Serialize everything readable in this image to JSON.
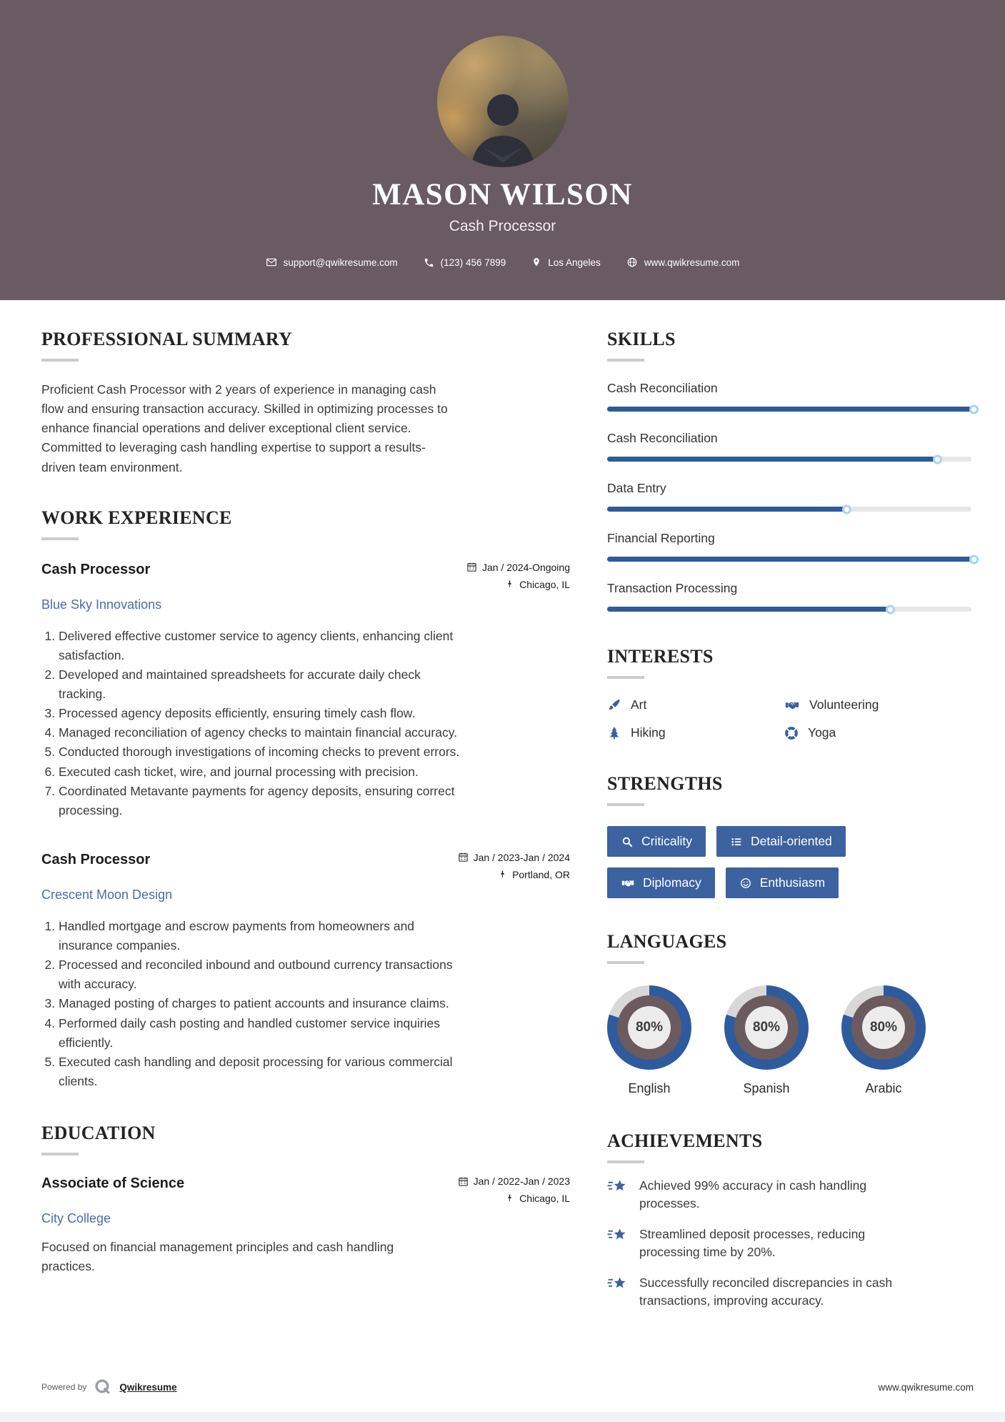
{
  "header": {
    "name": "MASON WILSON",
    "title": "Cash Processor",
    "contact": {
      "email": "support@qwikresume.com",
      "phone": "(123) 456 7899",
      "location": "Los Angeles",
      "website": "www.qwikresume.com"
    }
  },
  "colors": {
    "header_bg": "#6a5a61",
    "bar_blue": "#2f5b96",
    "button_blue": "#3c62a0",
    "link_blue": "#4a6da7",
    "donut_blue": "#2e5b9d",
    "donut_rest": "#d8d8d8",
    "donut_inner": "#6b5a5e"
  },
  "sections": {
    "summary": {
      "heading": "PROFESSIONAL SUMMARY",
      "text": "Proficient Cash Processor with 2 years of experience in managing cash flow and ensuring transaction accuracy. Skilled in optimizing processes to enhance financial operations and deliver exceptional client service. Committed to leveraging cash handling expertise to support a results-driven team environment."
    },
    "experience": {
      "heading": "WORK EXPERIENCE",
      "jobs": [
        {
          "title": "Cash Processor",
          "company": "Blue Sky Innovations",
          "dates": "Jan / 2024-Ongoing",
          "location": "Chicago, IL",
          "bullets": [
            "Delivered effective customer service to agency clients, enhancing client satisfaction.",
            "Developed and maintained spreadsheets for accurate daily check tracking.",
            "Processed agency deposits efficiently, ensuring timely cash flow.",
            "Managed reconciliation of agency checks to maintain financial accuracy.",
            "Conducted thorough investigations of incoming checks to prevent errors.",
            "Executed cash ticket, wire, and journal processing with precision.",
            "Coordinated Metavante payments for agency deposits, ensuring correct processing."
          ]
        },
        {
          "title": "Cash Processor",
          "company": "Crescent Moon Design",
          "dates": "Jan / 2023-Jan / 2024",
          "location": "Portland, OR",
          "bullets": [
            "Handled mortgage and escrow payments from homeowners and insurance companies.",
            "Processed and reconciled inbound and outbound currency transactions with accuracy.",
            "Managed posting of charges to patient accounts and insurance claims.",
            "Performed daily cash posting and handled customer service inquiries efficiently.",
            "Executed cash handling and deposit processing for various commercial clients."
          ]
        }
      ]
    },
    "education": {
      "heading": "EDUCATION",
      "degree": "Associate of Science",
      "school": "City College",
      "dates": "Jan / 2022-Jan / 2023",
      "location": "Chicago, IL",
      "description": "Focused on financial management principles and cash handling practices."
    },
    "skills": {
      "heading": "SKILLS",
      "items": [
        {
          "label": "Cash Reconciliation",
          "percent": 100
        },
        {
          "label": "Cash Reconciliation",
          "percent": 90
        },
        {
          "label": "Data Entry",
          "percent": 65
        },
        {
          "label": "Financial Reporting",
          "percent": 100
        },
        {
          "label": "Transaction Processing",
          "percent": 77
        }
      ]
    },
    "interests": {
      "heading": "INTERESTS",
      "items": [
        {
          "label": "Art",
          "icon": "paintbrush-icon"
        },
        {
          "label": "Volunteering",
          "icon": "handshake-icon"
        },
        {
          "label": "Hiking",
          "icon": "tree-icon"
        },
        {
          "label": "Yoga",
          "icon": "lifebuoy-icon"
        }
      ]
    },
    "strengths": {
      "heading": "STRENGTHS",
      "items": [
        {
          "label": "Criticality",
          "icon": "magnifier-icon"
        },
        {
          "label": "Detail-oriented",
          "icon": "list-icon"
        },
        {
          "label": "Diplomacy",
          "icon": "handshake-icon"
        },
        {
          "label": "Enthusiasm",
          "icon": "smiley-icon"
        }
      ]
    },
    "languages": {
      "heading": "LANGUAGES",
      "items": [
        {
          "label": "English",
          "percent": 80,
          "display": "80%"
        },
        {
          "label": "Spanish",
          "percent": 80,
          "display": "80%"
        },
        {
          "label": "Arabic",
          "percent": 80,
          "display": "80%"
        }
      ]
    },
    "achievements": {
      "heading": "ACHIEVEMENTS",
      "items": [
        "Achieved 99% accuracy in cash handling processes.",
        "Streamlined deposit processes, reducing processing time by 20%.",
        "Successfully reconciled discrepancies in cash transactions, improving accuracy."
      ]
    }
  },
  "footer": {
    "powered_by": "Powered by",
    "brand": "Qwikresume",
    "website": "www.qwikresume.com"
  }
}
